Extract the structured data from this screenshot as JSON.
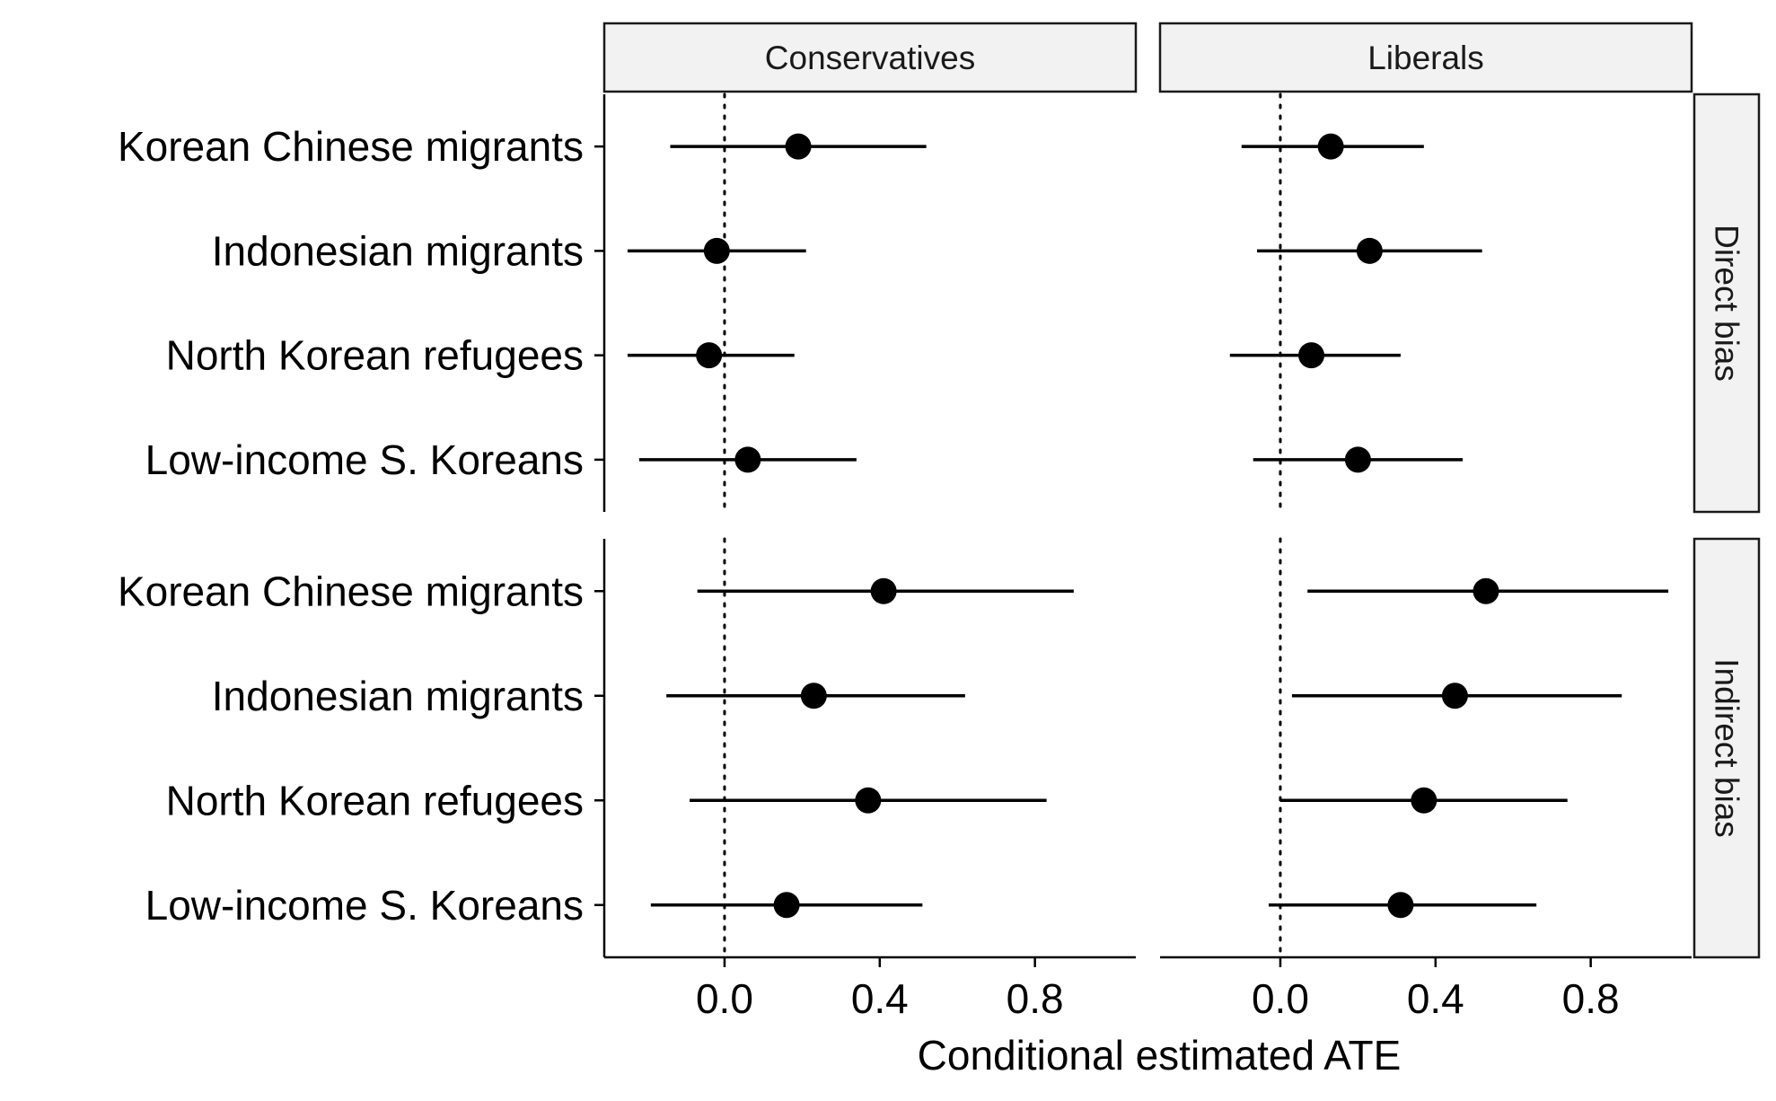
{
  "chart_data": {
    "type": "scatter",
    "subtype": "coefficient-plot-with-intervals",
    "xlabel": "Conditional estimated ATE",
    "xlim": [
      -0.31,
      1.06
    ],
    "xticks": [
      0.0,
      0.4,
      0.8
    ],
    "xtick_labels": [
      "0.0",
      "0.4",
      "0.8"
    ],
    "reference_line": {
      "x": 0,
      "style": "dotted"
    },
    "columns": [
      "Conservatives",
      "Liberals"
    ],
    "rows": [
      "Direct bias",
      "Indirect bias"
    ],
    "categories": [
      "Korean Chinese migrants",
      "Indonesian migrants",
      "North Korean refugees",
      "Low-income S. Koreans"
    ],
    "grid": false,
    "legend": "none",
    "panels": [
      {
        "column": "Conservatives",
        "row": "Direct bias",
        "points": [
          {
            "category": "Korean Chinese migrants",
            "estimate": 0.19,
            "lower": -0.14,
            "upper": 0.52
          },
          {
            "category": "Indonesian migrants",
            "estimate": -0.02,
            "lower": -0.25,
            "upper": 0.21
          },
          {
            "category": "North Korean refugees",
            "estimate": -0.04,
            "lower": -0.25,
            "upper": 0.18
          },
          {
            "category": "Low-income S. Koreans",
            "estimate": 0.06,
            "lower": -0.22,
            "upper": 0.34
          }
        ]
      },
      {
        "column": "Liberals",
        "row": "Direct bias",
        "points": [
          {
            "category": "Korean Chinese migrants",
            "estimate": 0.13,
            "lower": -0.1,
            "upper": 0.37
          },
          {
            "category": "Indonesian migrants",
            "estimate": 0.23,
            "lower": -0.06,
            "upper": 0.52
          },
          {
            "category": "North Korean refugees",
            "estimate": 0.08,
            "lower": -0.13,
            "upper": 0.31
          },
          {
            "category": "Low-income S. Koreans",
            "estimate": 0.2,
            "lower": -0.07,
            "upper": 0.47
          }
        ]
      },
      {
        "column": "Conservatives",
        "row": "Indirect bias",
        "points": [
          {
            "category": "Korean Chinese migrants",
            "estimate": 0.41,
            "lower": -0.07,
            "upper": 0.9
          },
          {
            "category": "Indonesian migrants",
            "estimate": 0.23,
            "lower": -0.15,
            "upper": 0.62
          },
          {
            "category": "North Korean refugees",
            "estimate": 0.37,
            "lower": -0.09,
            "upper": 0.83
          },
          {
            "category": "Low-income S. Koreans",
            "estimate": 0.16,
            "lower": -0.19,
            "upper": 0.51
          }
        ]
      },
      {
        "column": "Liberals",
        "row": "Indirect bias",
        "points": [
          {
            "category": "Korean Chinese migrants",
            "estimate": 0.53,
            "lower": 0.07,
            "upper": 1.0
          },
          {
            "category": "Indonesian migrants",
            "estimate": 0.45,
            "lower": 0.03,
            "upper": 0.88
          },
          {
            "category": "North Korean refugees",
            "estimate": 0.37,
            "lower": 0.0,
            "upper": 0.74
          },
          {
            "category": "Low-income S. Koreans",
            "estimate": 0.31,
            "lower": -0.03,
            "upper": 0.66
          }
        ]
      }
    ]
  }
}
